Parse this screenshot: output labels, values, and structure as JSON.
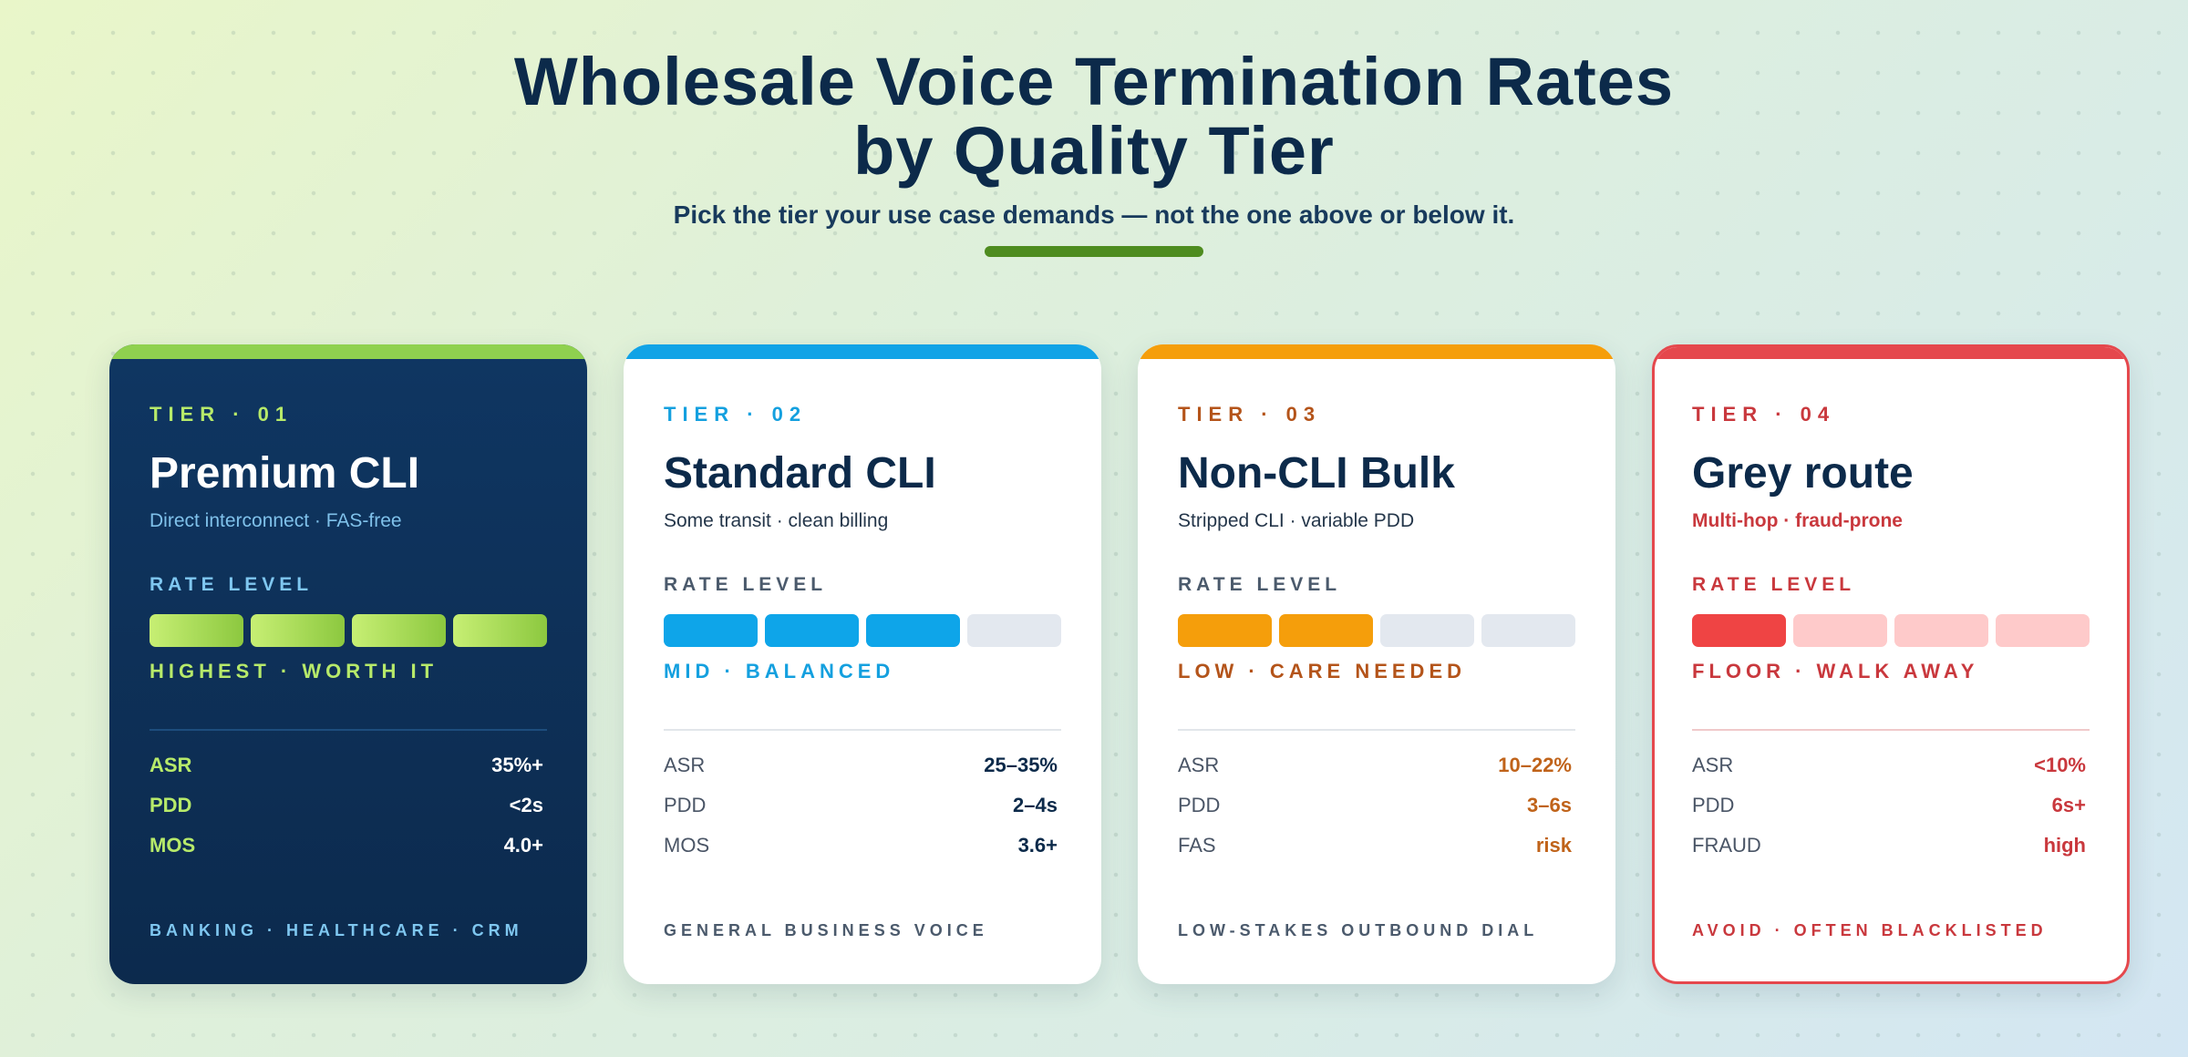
{
  "header": {
    "title_line1": "Wholesale Voice Termination Rates",
    "title_line2": "by Quality Tier",
    "subtitle": "Pick the tier your use case demands — not the one above or below it."
  },
  "colors": {
    "premium": "#8fd14f",
    "standard": "#0ea5e9",
    "bulk": "#f59e0b",
    "grey": "#e5484d",
    "navy": "#0c2a4a"
  },
  "tiers": [
    {
      "tier": "TIER · 01",
      "name": "Premium CLI",
      "desc": "Direct interconnect · FAS-free",
      "rate_label": "RATE LEVEL",
      "rate_level": 4,
      "rate_max": 4,
      "rate_value": "HIGHEST · WORTH IT",
      "metrics": [
        {
          "k": "ASR",
          "v": "35%+"
        },
        {
          "k": "PDD",
          "v": "<2s"
        },
        {
          "k": "MOS",
          "v": "4.0+"
        }
      ],
      "footer": "BANKING · HEALTHCARE · CRM"
    },
    {
      "tier": "TIER · 02",
      "name": "Standard CLI",
      "desc": "Some transit · clean billing",
      "rate_label": "RATE LEVEL",
      "rate_level": 3,
      "rate_max": 4,
      "rate_value": "MID · BALANCED",
      "metrics": [
        {
          "k": "ASR",
          "v": "25–35%"
        },
        {
          "k": "PDD",
          "v": "2–4s"
        },
        {
          "k": "MOS",
          "v": "3.6+"
        }
      ],
      "footer": "GENERAL BUSINESS VOICE"
    },
    {
      "tier": "TIER · 03",
      "name": "Non-CLI Bulk",
      "desc": "Stripped CLI · variable PDD",
      "rate_label": "RATE LEVEL",
      "rate_level": 2,
      "rate_max": 4,
      "rate_value": "LOW · CARE NEEDED",
      "metrics": [
        {
          "k": "ASR",
          "v": "10–22%"
        },
        {
          "k": "PDD",
          "v": "3–6s"
        },
        {
          "k": "FAS",
          "v": "risk"
        }
      ],
      "footer": "LOW-STAKES OUTBOUND DIAL"
    },
    {
      "tier": "TIER · 04",
      "name": "Grey route",
      "desc": "Multi-hop · fraud-prone",
      "rate_label": "RATE LEVEL",
      "rate_level": 1,
      "rate_max": 4,
      "rate_value": "FLOOR · WALK AWAY",
      "metrics": [
        {
          "k": "ASR",
          "v": "<10%"
        },
        {
          "k": "PDD",
          "v": "6s+"
        },
        {
          "k": "FRAUD",
          "v": "high"
        }
      ],
      "footer": "AVOID · OFTEN BLACKLISTED"
    }
  ]
}
